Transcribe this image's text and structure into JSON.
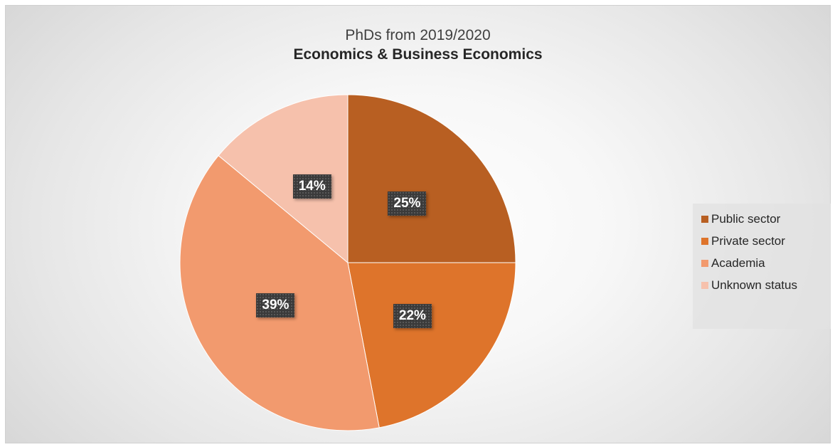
{
  "chart_data": {
    "type": "pie",
    "title": "PhDs from 2019/2020",
    "subtitle": "Economics & Business Economics",
    "categories": [
      "Public sector",
      "Private sector",
      "Academia",
      "Unknown status"
    ],
    "values": [
      25,
      22,
      39,
      14
    ],
    "value_labels": [
      "25%",
      "22%",
      "39%",
      "14%"
    ],
    "colors": [
      "#b85f22",
      "#de742b",
      "#f29a6e",
      "#f6c1ac"
    ],
    "start_angle_deg": 0,
    "direction": "clockwise",
    "legend_position": "right"
  }
}
